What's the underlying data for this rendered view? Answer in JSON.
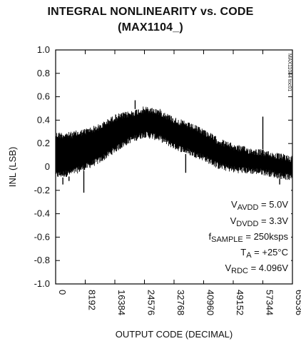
{
  "chart_data": {
    "type": "line",
    "title": "INTEGRAL NONLINEARITY vs. CODE",
    "subtitle": "(MAX1104_)",
    "xlabel": "OUTPUT CODE (DECIMAL)",
    "ylabel": "INL (LSB)",
    "xlim": [
      0,
      65536
    ],
    "ylim": [
      -1.0,
      1.0
    ],
    "x_ticks": [
      "0",
      "8192",
      "16384",
      "24576",
      "32768",
      "40960",
      "49152",
      "57344",
      "65536"
    ],
    "y_ticks": [
      "1.0",
      "0.8",
      "0.6",
      "0.4",
      "0.2",
      "0",
      "-0.2",
      "-0.4",
      "-0.6",
      "-0.8",
      "-1.0"
    ],
    "grid": false,
    "series": [
      {
        "x": [
          0,
          4096,
          8192,
          12288,
          16384,
          20480,
          24576,
          28672,
          32768,
          36864,
          40960,
          45056,
          49152,
          53248,
          57344,
          61440,
          65536
        ],
        "upper": [
          0.3,
          0.3,
          0.33,
          0.37,
          0.45,
          0.48,
          0.52,
          0.5,
          0.43,
          0.38,
          0.33,
          0.25,
          0.2,
          0.17,
          0.15,
          0.12,
          0.1
        ],
        "lower": [
          -0.1,
          -0.08,
          -0.03,
          0.03,
          0.12,
          0.2,
          0.25,
          0.22,
          0.15,
          0.1,
          0.05,
          -0.02,
          -0.05,
          -0.06,
          -0.07,
          -0.1,
          -0.12
        ],
        "spikes": [
          {
            "x": 2000,
            "y": -0.15
          },
          {
            "x": 3700,
            "y": -0.12
          },
          {
            "x": 7800,
            "y": -0.22
          },
          {
            "x": 22000,
            "y": 0.57
          },
          {
            "x": 36000,
            "y": -0.05
          },
          {
            "x": 57344,
            "y": 0.43
          },
          {
            "x": 62000,
            "y": -0.15
          }
        ]
      }
    ]
  },
  "annotations": [
    {
      "main": "V",
      "sub": "AVDD",
      "rest": " = 5.0V"
    },
    {
      "main": "V",
      "sub": "DVDD",
      "rest": " = 3.3V"
    },
    {
      "main": "f",
      "sub": "SAMPLE",
      "rest": " = 250ksps"
    },
    {
      "main": "T",
      "sub": "A",
      "rest": " = +25°C"
    },
    {
      "main": "V",
      "sub": "RDC",
      "rest": " = 4.096V"
    }
  ],
  "side_note": "MAX11044 toc01",
  "colors": {
    "trace": "#000000",
    "axis": "#000000"
  }
}
